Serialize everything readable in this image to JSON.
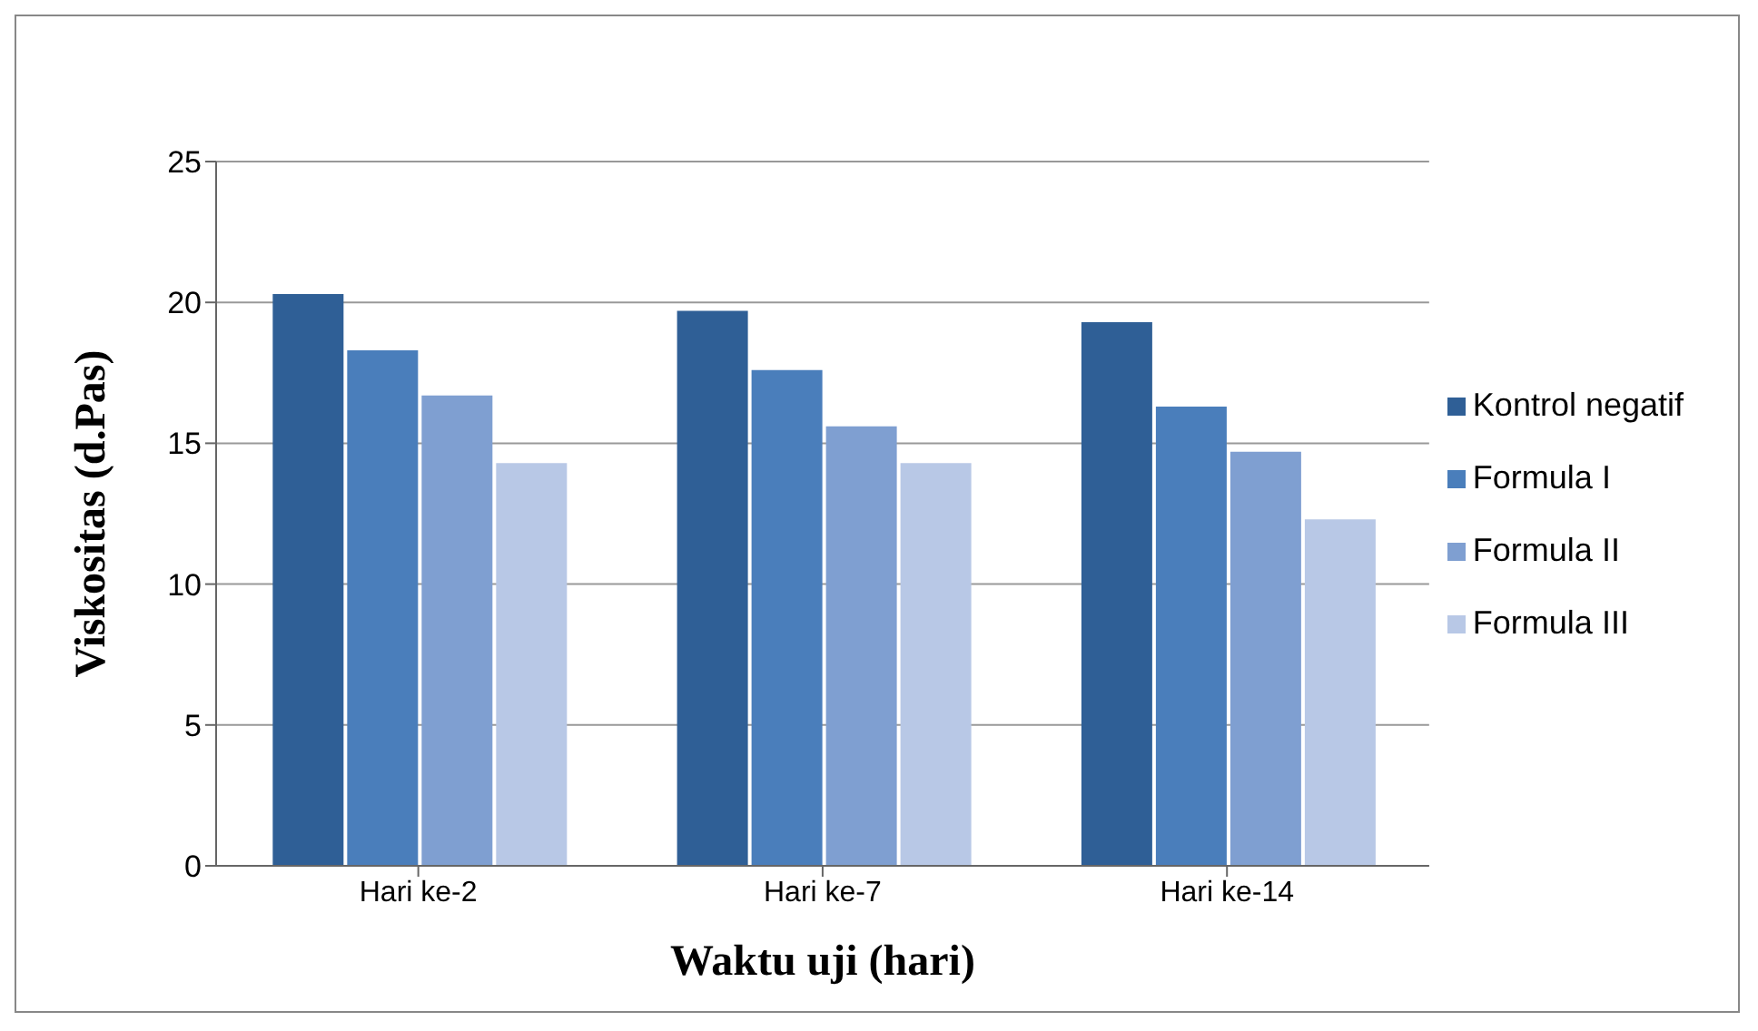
{
  "chart_data": {
    "type": "bar",
    "xlabel": "Waktu uji (hari)",
    "ylabel": "Viskositas (d.Pas)",
    "categories": [
      "Hari ke-2",
      "Hari ke-7",
      "Hari ke-14"
    ],
    "series": [
      {
        "name": "Kontrol negatif",
        "color": "#2f5f96",
        "values": [
          20.3,
          19.7,
          19.3
        ]
      },
      {
        "name": "Formula I",
        "color": "#4a7ebb",
        "values": [
          18.3,
          17.6,
          16.3
        ]
      },
      {
        "name": "Formula II",
        "color": "#7f9fd1",
        "values": [
          16.7,
          15.6,
          14.7
        ]
      },
      {
        "name": "Formula III",
        "color": "#b8c8e6",
        "values": [
          14.3,
          14.3,
          12.3
        ]
      }
    ],
    "ylim": [
      0,
      25
    ],
    "yticks": [
      0,
      5,
      10,
      15,
      20,
      25
    ],
    "grid": "y",
    "legend": "right"
  }
}
